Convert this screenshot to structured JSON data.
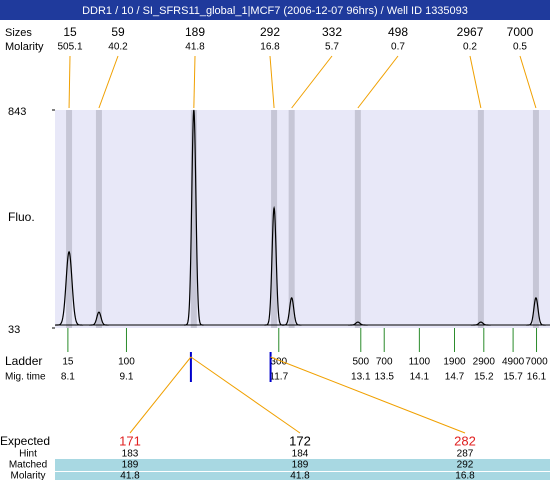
{
  "title": "DDR1 / 10 / SI_SFRS11_global_1|MCF7 (2006-12-07 96hrs) / Well ID 1335093",
  "chart_data": {
    "type": "electropherogram",
    "y_label": "Fluo.",
    "xlim": [
      7.88,
      16.33
    ],
    "ylim": [
      33,
      843
    ],
    "yticks": [
      33,
      843
    ],
    "baseline": 44,
    "peaks": {
      "size_label": "Sizes",
      "molarity_label": "Molarity",
      "sizes": [
        15,
        59,
        189,
        292,
        332,
        498,
        2967,
        7000
      ],
      "molarity": [
        505.1,
        40.2,
        41.8,
        16.8,
        5.7,
        0.7,
        0.2,
        0.5
      ],
      "times": [
        8.12,
        8.63,
        10.25,
        11.62,
        11.92,
        13.05,
        15.15,
        16.09
      ],
      "heights": [
        316,
        92,
        843,
        479,
        145,
        55,
        55,
        145
      ]
    },
    "ladder": {
      "label": "Ladder",
      "time_label": "Mig. time",
      "sizes": [
        15,
        100,
        300,
        500,
        700,
        1100,
        1900,
        2900,
        4900,
        7000
      ],
      "times": [
        8.1,
        9.1,
        11.7,
        13.1,
        13.5,
        14.1,
        14.7,
        15.2,
        15.7,
        16.1
      ]
    },
    "alignment": {
      "expected_label": "Expected",
      "hint_label": "Hint",
      "matched_label": "Matched",
      "molarity_label": "Molarity",
      "marker_times": [
        10.2,
        11.56
      ],
      "expected": [
        171,
        172,
        282
      ],
      "expected_colors": [
        "#e02020",
        "#000000",
        "#e02020"
      ],
      "hint": [
        183,
        184,
        287
      ],
      "matched": [
        189,
        189,
        292
      ],
      "molarity": [
        41.8,
        41.8,
        16.8
      ]
    }
  }
}
